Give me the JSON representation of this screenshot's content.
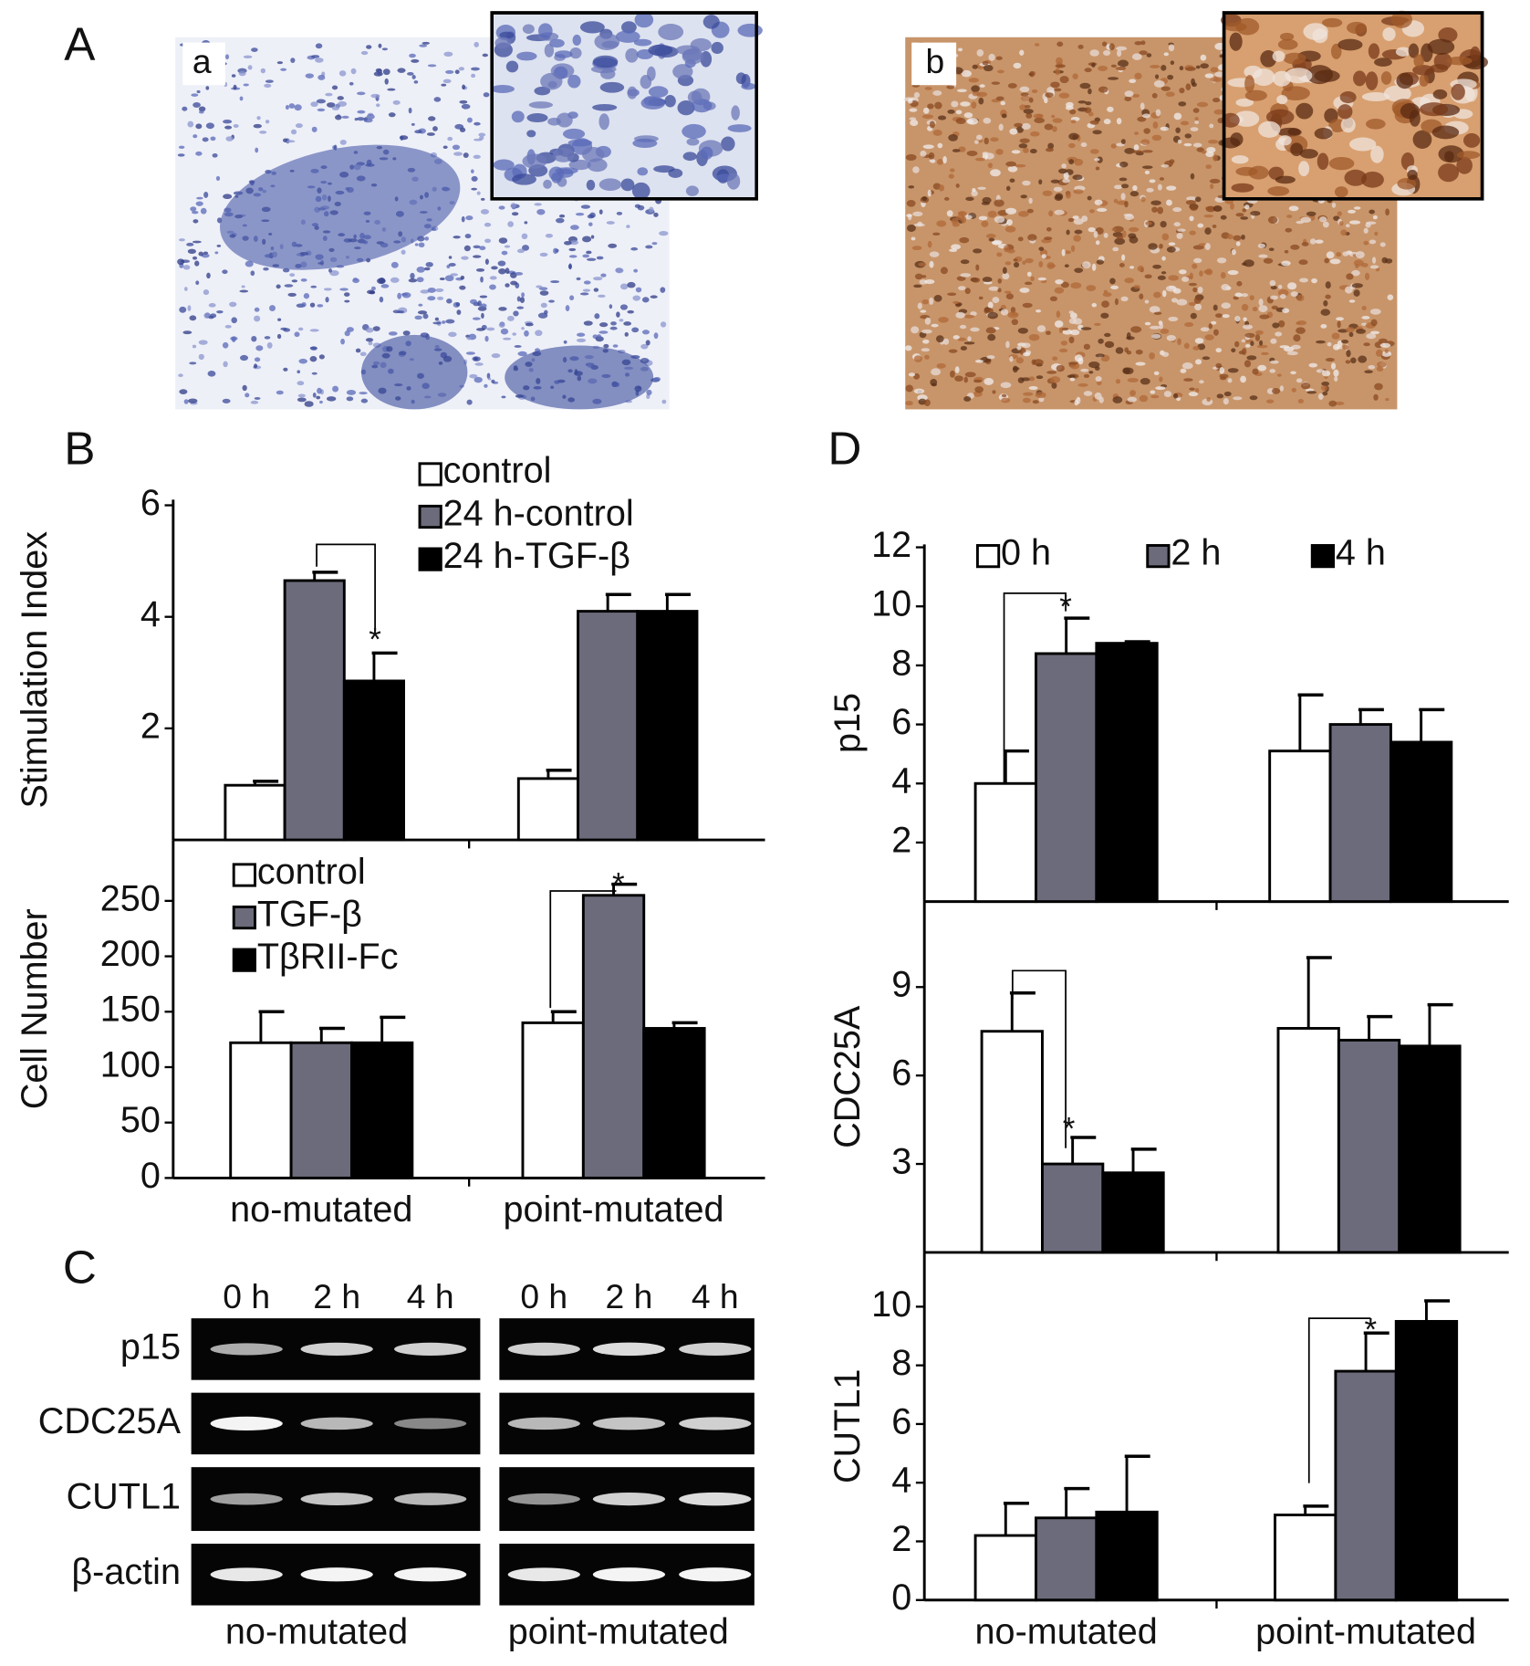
{
  "panel_labels": [
    "A",
    "B",
    "C",
    "D"
  ],
  "micrographs": [
    {
      "label": "a"
    },
    {
      "label": "b"
    }
  ],
  "gel": {
    "time_labels": [
      "0 h",
      "2 h",
      "4 h",
      "0 h",
      "2 h",
      "4 h"
    ],
    "genes": [
      "p15",
      "CDC25A",
      "CUTL1",
      "β-actin"
    ],
    "groups": [
      "no-mutated",
      "point-mutated"
    ]
  },
  "chart_data": [
    {
      "type": "bar",
      "y_label": "Stimulation Index",
      "categories": [
        null,
        null
      ],
      "series": [
        {
          "name": "control",
          "color": "#ffffff",
          "values": [
            0.98,
            1.1
          ],
          "errors": [
            0.07,
            0.15
          ]
        },
        {
          "name": "24 h-control",
          "color": "#6b6b7b",
          "values": [
            4.65,
            4.1
          ],
          "errors": [
            0.15,
            0.3
          ]
        },
        {
          "name": "24 h-TGF-β",
          "color": "#000000",
          "values": [
            2.85,
            4.1
          ],
          "errors": [
            0.5,
            0.3
          ]
        }
      ],
      "ylim": [
        0,
        6.1
      ],
      "yticks": [
        2,
        4,
        6
      ],
      "annotations": [
        "*"
      ]
    },
    {
      "type": "bar",
      "y_label": "Cell Number",
      "categories": [
        "no-mutated",
        "point-mutated"
      ],
      "series": [
        {
          "name": "control",
          "color": "#ffffff",
          "values": [
            122,
            140
          ],
          "errors": [
            28,
            10
          ]
        },
        {
          "name": "TGF-β",
          "color": "#6b6b7b",
          "values": [
            122,
            255
          ],
          "errors": [
            13,
            10
          ]
        },
        {
          "name": "TβRII-Fc",
          "color": "#000000",
          "values": [
            122,
            135
          ],
          "errors": [
            23,
            5
          ]
        }
      ],
      "ylim": [
        0,
        305
      ],
      "yticks": [
        0,
        50,
        100,
        150,
        200,
        250
      ],
      "annotations": [
        "*"
      ]
    },
    {
      "type": "bar",
      "y_label": "p15",
      "categories": [
        null,
        null
      ],
      "series": [
        {
          "name": "0 h",
          "color": "#ffffff",
          "values": [
            4.0,
            5.1
          ],
          "errors": [
            1.1,
            1.9
          ]
        },
        {
          "name": "2 h",
          "color": "#6b6b7b",
          "values": [
            8.4,
            6.0
          ],
          "errors": [
            1.2,
            0.5
          ]
        },
        {
          "name": "4 h",
          "color": "#000000",
          "values": [
            8.75,
            5.4
          ],
          "errors": [
            0.05,
            1.1
          ]
        }
      ],
      "ylim": [
        0,
        12.1
      ],
      "yticks": [
        2,
        4,
        6,
        8,
        10,
        12
      ],
      "annotations": [
        "*"
      ]
    },
    {
      "type": "bar",
      "y_label": "CDC25A",
      "categories": [
        null,
        null
      ],
      "series": [
        {
          "name": null,
          "color": "#ffffff",
          "values": [
            7.5,
            7.6
          ],
          "errors": [
            1.3,
            2.4
          ]
        },
        {
          "name": null,
          "color": "#6b6b7b",
          "values": [
            3.0,
            7.2
          ],
          "errors": [
            0.9,
            0.8
          ]
        },
        {
          "name": null,
          "color": "#000000",
          "values": [
            2.7,
            7.0
          ],
          "errors": [
            0.8,
            1.4
          ]
        }
      ],
      "ylim": [
        0,
        11.9
      ],
      "yticks": [
        3,
        6,
        9
      ],
      "annotations": [
        "*"
      ]
    },
    {
      "type": "bar",
      "y_label": "CUTL1",
      "categories": [
        "no-mutated",
        "point-mutated"
      ],
      "series": [
        {
          "name": null,
          "color": "#ffffff",
          "values": [
            2.2,
            2.9
          ],
          "errors": [
            1.1,
            0.3
          ]
        },
        {
          "name": null,
          "color": "#6b6b7b",
          "values": [
            2.8,
            7.8
          ],
          "errors": [
            1.0,
            1.3
          ]
        },
        {
          "name": null,
          "color": "#000000",
          "values": [
            3.0,
            9.5
          ],
          "errors": [
            1.9,
            0.7
          ]
        }
      ],
      "ylim": [
        0,
        11.85
      ],
      "yticks": [
        0,
        2,
        4,
        6,
        8,
        10
      ],
      "annotations": [
        "*"
      ]
    }
  ]
}
